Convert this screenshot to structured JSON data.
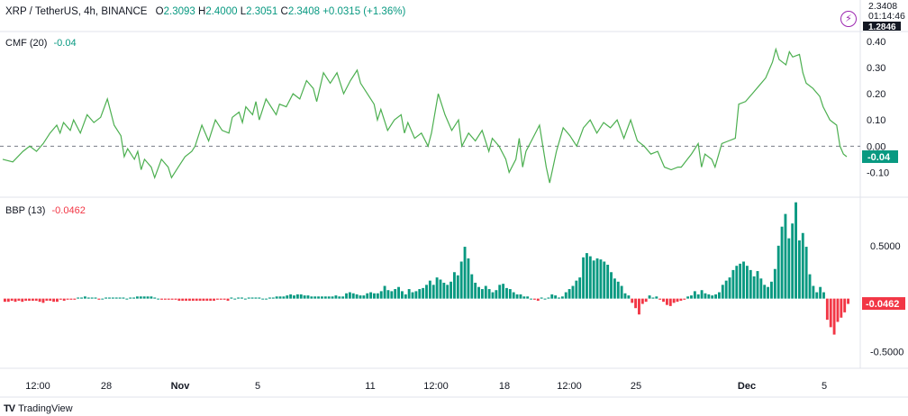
{
  "header": {
    "symbol": "XRP / TetherUS, 4h, BINANCE",
    "o_label": "O",
    "o_value": "2.3093",
    "h_label": "H",
    "h_value": "2.4000",
    "l_label": "L",
    "l_value": "2.3051",
    "c_label": "C",
    "c_value": "2.3408",
    "change": "+0.0315 (+1.36%)"
  },
  "price_axis": {
    "last_price": "2.3408",
    "countdown": "01:14:46",
    "partial_label": "1.2846"
  },
  "icons": {
    "alert": "lightning-bolt-icon"
  },
  "colors": {
    "up": "#089981",
    "down": "#f23645",
    "cmf_line": "#4caf50",
    "accent": "#9c27b0"
  },
  "chart_data": [
    {
      "type": "line",
      "title": "CMF (20)",
      "value_label": "-0.04",
      "last_value": -0.04,
      "ylim": [
        -0.15,
        0.42
      ],
      "yticks": [
        0.4,
        0.3,
        0.2,
        0.1,
        0.0,
        -0.1
      ],
      "ytick_labels": [
        "0.40",
        "0.30",
        "0.20",
        "0.10",
        "0.00",
        "-0.10"
      ],
      "zero_line": "dashed",
      "x_index_range": [
        0,
        120
      ],
      "points": [
        [
          0,
          -0.05
        ],
        [
          3,
          -0.06
        ],
        [
          6,
          -0.02
        ],
        [
          8,
          0.0
        ],
        [
          10,
          -0.02
        ],
        [
          12,
          0.01
        ],
        [
          14,
          0.05
        ],
        [
          16,
          0.08
        ],
        [
          17,
          0.05
        ],
        [
          18,
          0.09
        ],
        [
          20,
          0.06
        ],
        [
          21,
          0.1
        ],
        [
          23,
          0.05
        ],
        [
          25,
          0.12
        ],
        [
          27,
          0.09
        ],
        [
          29,
          0.11
        ],
        [
          31,
          0.18
        ],
        [
          33,
          0.08
        ],
        [
          35,
          0.04
        ],
        [
          36,
          -0.04
        ],
        [
          37,
          -0.01
        ],
        [
          39,
          -0.05
        ],
        [
          40,
          -0.02
        ],
        [
          41,
          -0.09
        ],
        [
          42,
          -0.05
        ],
        [
          44,
          -0.08
        ],
        [
          45,
          -0.12
        ],
        [
          47,
          -0.05
        ],
        [
          49,
          -0.08
        ],
        [
          50,
          -0.12
        ],
        [
          52,
          -0.08
        ],
        [
          54,
          -0.04
        ],
        [
          56,
          -0.02
        ],
        [
          57,
          0.0
        ],
        [
          59,
          0.08
        ],
        [
          61,
          0.02
        ],
        [
          63,
          0.1
        ],
        [
          65,
          0.06
        ],
        [
          67,
          0.05
        ],
        [
          68,
          0.11
        ],
        [
          70,
          0.13
        ],
        [
          71,
          0.09
        ],
        [
          72,
          0.15
        ],
        [
          74,
          0.12
        ],
        [
          75,
          0.17
        ],
        [
          76,
          0.1
        ],
        [
          78,
          0.18
        ],
        [
          80,
          0.14
        ],
        [
          81,
          0.12
        ],
        [
          82,
          0.16
        ],
        [
          84,
          0.15
        ],
        [
          86,
          0.2
        ],
        [
          88,
          0.18
        ],
        [
          90,
          0.25
        ],
        [
          92,
          0.22
        ],
        [
          93,
          0.17
        ],
        [
          95,
          0.28
        ],
        [
          97,
          0.24
        ],
        [
          99,
          0.28
        ],
        [
          101,
          0.2
        ],
        [
          103,
          0.25
        ],
        [
          105,
          0.29
        ],
        [
          106,
          0.24
        ],
        [
          108,
          0.2
        ],
        [
          110,
          0.16
        ],
        [
          111,
          0.1
        ],
        [
          112,
          0.14
        ],
        [
          114,
          0.06
        ],
        [
          116,
          0.1
        ],
        [
          118,
          0.12
        ],
        [
          119,
          0.05
        ],
        [
          120,
          0.09
        ],
        [
          122,
          0.03
        ],
        [
          124,
          0.05
        ],
        [
          126,
          0.0
        ],
        [
          127,
          0.05
        ],
        [
          129,
          0.2
        ],
        [
          131,
          0.12
        ],
        [
          133,
          0.06
        ],
        [
          135,
          0.1
        ],
        [
          136,
          0.0
        ],
        [
          138,
          0.05
        ],
        [
          140,
          0.02
        ],
        [
          142,
          0.06
        ],
        [
          144,
          -0.02
        ],
        [
          145,
          0.03
        ],
        [
          147,
          0.0
        ],
        [
          149,
          -0.05
        ],
        [
          150,
          -0.1
        ],
        [
          152,
          -0.05
        ],
        [
          153,
          0.03
        ],
        [
          154,
          -0.08
        ],
        [
          155,
          -0.02
        ],
        [
          157,
          0.03
        ],
        [
          159,
          0.08
        ],
        [
          161,
          -0.08
        ],
        [
          162,
          -0.14
        ],
        [
          164,
          -0.02
        ],
        [
          166,
          0.07
        ],
        [
          168,
          0.04
        ],
        [
          170,
          0.0
        ],
        [
          172,
          0.07
        ],
        [
          174,
          0.1
        ],
        [
          176,
          0.05
        ],
        [
          178,
          0.09
        ],
        [
          180,
          0.07
        ],
        [
          182,
          0.1
        ],
        [
          184,
          0.03
        ],
        [
          186,
          0.1
        ],
        [
          188,
          0.02
        ],
        [
          190,
          0.0
        ],
        [
          192,
          -0.03
        ],
        [
          194,
          -0.02
        ],
        [
          196,
          -0.08
        ],
        [
          198,
          -0.09
        ],
        [
          200,
          -0.08
        ],
        [
          201,
          -0.08
        ],
        [
          204,
          -0.03
        ],
        [
          206,
          0.01
        ],
        [
          207,
          -0.08
        ],
        [
          208,
          -0.03
        ],
        [
          210,
          -0.05
        ],
        [
          211,
          -0.08
        ],
        [
          213,
          0.01
        ],
        [
          215,
          0.02
        ],
        [
          217,
          0.03
        ],
        [
          218,
          0.16
        ],
        [
          220,
          0.17
        ],
        [
          222,
          0.2
        ],
        [
          224,
          0.23
        ],
        [
          226,
          0.26
        ],
        [
          228,
          0.32
        ],
        [
          229,
          0.37
        ],
        [
          230,
          0.33
        ],
        [
          232,
          0.31
        ],
        [
          233,
          0.36
        ],
        [
          234,
          0.34
        ],
        [
          236,
          0.35
        ],
        [
          237,
          0.28
        ],
        [
          238,
          0.24
        ],
        [
          240,
          0.22
        ],
        [
          242,
          0.19
        ],
        [
          243,
          0.15
        ],
        [
          245,
          0.1
        ],
        [
          246,
          0.09
        ],
        [
          247,
          0.08
        ],
        [
          248,
          0.0
        ],
        [
          249,
          -0.03
        ],
        [
          250,
          -0.04
        ]
      ]
    },
    {
      "type": "bar",
      "title": "BBP (13)",
      "value_label": "-0.0462",
      "last_value": -0.0462,
      "ylim": [
        -0.65,
        0.95
      ],
      "yticks": [
        0.5,
        0.0,
        -0.5
      ],
      "ytick_labels": [
        "0.5000",
        "",
        "-0.5000"
      ],
      "values": [
        -0.03,
        -0.03,
        -0.02,
        -0.03,
        -0.02,
        -0.03,
        -0.02,
        -0.02,
        -0.02,
        -0.02,
        -0.03,
        -0.04,
        -0.02,
        -0.02,
        -0.03,
        -0.03,
        -0.01,
        -0.02,
        -0.01,
        -0.01,
        -0.01,
        0.01,
        0.01,
        0.02,
        0.01,
        0.01,
        0.01,
        -0.01,
        0.0,
        0.01,
        0.01,
        0.01,
        0.01,
        0.01,
        0.01,
        0.0,
        0.01,
        0.01,
        0.02,
        0.02,
        0.02,
        0.02,
        0.02,
        0.01,
        0.0,
        -0.01,
        -0.01,
        -0.01,
        -0.01,
        -0.01,
        -0.02,
        -0.02,
        -0.02,
        -0.02,
        -0.02,
        -0.02,
        -0.02,
        -0.02,
        -0.02,
        -0.02,
        -0.02,
        -0.01,
        -0.01,
        -0.01,
        -0.02,
        0.01,
        0.0,
        0.01,
        0.01,
        0.0,
        0.01,
        0.01,
        0.01,
        0.01,
        0.0,
        0.0,
        0.01,
        0.01,
        0.02,
        0.02,
        0.02,
        0.03,
        0.04,
        0.03,
        0.04,
        0.04,
        0.03,
        0.03,
        0.02,
        0.02,
        0.02,
        0.02,
        0.02,
        0.02,
        0.02,
        0.03,
        0.02,
        0.02,
        0.05,
        0.06,
        0.05,
        0.04,
        0.03,
        0.03,
        0.05,
        0.06,
        0.05,
        0.05,
        0.07,
        0.12,
        0.08,
        0.07,
        0.09,
        0.11,
        0.07,
        0.04,
        0.09,
        0.06,
        0.07,
        0.09,
        0.1,
        0.13,
        0.17,
        0.13,
        0.2,
        0.18,
        0.15,
        0.13,
        0.16,
        0.25,
        0.22,
        0.35,
        0.49,
        0.38,
        0.23,
        0.15,
        0.11,
        0.09,
        0.12,
        0.09,
        0.06,
        0.08,
        0.13,
        0.14,
        0.1,
        0.09,
        0.06,
        0.04,
        0.04,
        0.02,
        0.02,
        0.0,
        -0.01,
        -0.02,
        0.01,
        0.0,
        0.01,
        0.04,
        0.03,
        0.01,
        0.02,
        0.06,
        0.09,
        0.12,
        0.17,
        0.2,
        0.39,
        0.43,
        0.4,
        0.36,
        0.38,
        0.37,
        0.35,
        0.32,
        0.25,
        0.19,
        0.16,
        0.12,
        0.05,
        0.03,
        -0.04,
        -0.09,
        -0.15,
        -0.05,
        -0.03,
        0.03,
        0.01,
        0.02,
        -0.01,
        -0.03,
        -0.06,
        -0.07,
        -0.04,
        -0.03,
        -0.02,
        -0.01,
        0.02,
        0.03,
        0.07,
        0.04,
        0.08,
        0.05,
        0.04,
        0.03,
        0.04,
        0.06,
        0.13,
        0.17,
        0.2,
        0.27,
        0.31,
        0.33,
        0.35,
        0.31,
        0.27,
        0.21,
        0.26,
        0.19,
        0.13,
        0.11,
        0.16,
        0.28,
        0.5,
        0.68,
        0.8,
        0.57,
        0.71,
        0.91,
        0.55,
        0.62,
        0.49,
        0.23,
        0.12,
        0.06,
        0.11,
        0.06,
        -0.2,
        -0.27,
        -0.34,
        -0.22,
        -0.18,
        -0.13,
        -0.05
      ]
    }
  ],
  "time_axis": {
    "labels": [
      "12:00",
      "28",
      "Nov",
      "5",
      "11",
      "12:00",
      "18",
      "12:00",
      "25",
      "Dec",
      "5"
    ],
    "bold": [
      false,
      false,
      true,
      false,
      false,
      false,
      false,
      false,
      false,
      true,
      false
    ]
  },
  "branding": {
    "logo_text": "TradingView",
    "logo_mark": "TV"
  }
}
